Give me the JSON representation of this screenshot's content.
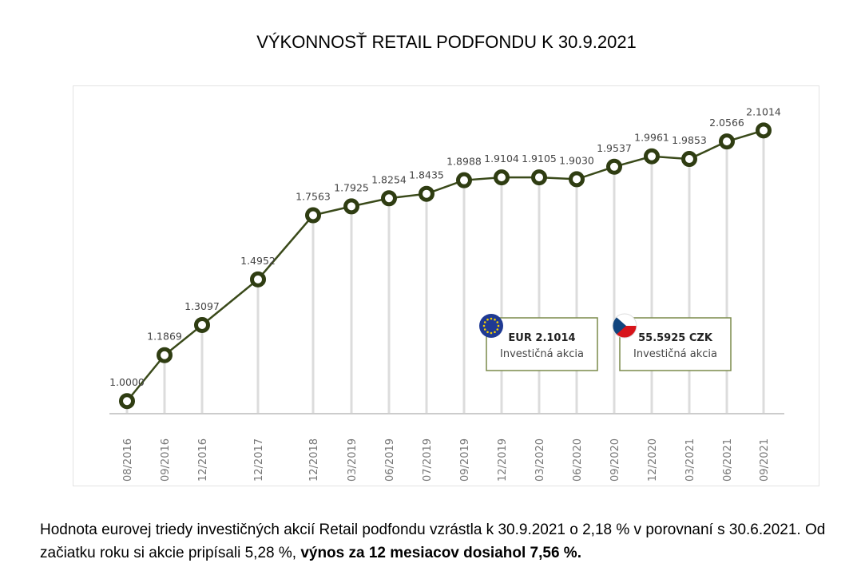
{
  "title": "VÝKONNOSŤ RETAIL PODFONDU K 30.9.2021",
  "colors": {
    "line": "#3a4a1a",
    "marker": "#2f3d12",
    "axis": "#cccccc",
    "grid": "#dcdcdc",
    "label": "#444444",
    "box_border": "#7a8a4a",
    "eu_flag": "#1f3a93",
    "eu_star": "#f5d000"
  },
  "chart_data": {
    "type": "line",
    "title": "",
    "xlabel": "",
    "ylabel": "",
    "ylim": [
      0.9,
      2.2
    ],
    "grid": false,
    "categories": [
      "08/2016",
      "09/2016",
      "12/2016",
      "12/2017",
      "12/2018",
      "03/2019",
      "06/2019",
      "07/2019",
      "09/2019",
      "12/2019",
      "03/2020",
      "06/2020",
      "09/2020",
      "12/2020",
      "03/2021",
      "06/2021",
      "09/2021"
    ],
    "values": [
      1.0,
      1.1869,
      1.3097,
      1.4952,
      1.7563,
      1.7925,
      1.8254,
      1.8435,
      1.8988,
      1.9104,
      1.9105,
      1.903,
      1.9537,
      1.9961,
      1.9853,
      2.0566,
      2.1014
    ],
    "value_labels": [
      "1.0000",
      "1.1869",
      "1.3097",
      "1.4952",
      "1.7563",
      "1.7925",
      "1.8254",
      "1.8435",
      "1.8988",
      "1.9104",
      "1.9105",
      "1.9030",
      "1.9537",
      "1.9961",
      "1.9853",
      "2.0566",
      "2.1014"
    ]
  },
  "boxes": [
    {
      "flag": "eu-flag-icon",
      "value": "EUR 2.1014",
      "label": "Investičná akcia"
    },
    {
      "flag": "czech-flag-icon",
      "value": "55.5925 CZK",
      "label": "Investičná akcia"
    }
  ],
  "footer": {
    "text_normal": "Hodnota eurovej triedy investičných akcií Retail podfondu vzrástla k 30.9.2021 o 2,18 % v porovnaní s 30.6.2021. Od začiatku roku si akcie pripísali 5,28 %, ",
    "text_bold": "výnos za 12 mesiacov dosiahol 7,56 %."
  }
}
